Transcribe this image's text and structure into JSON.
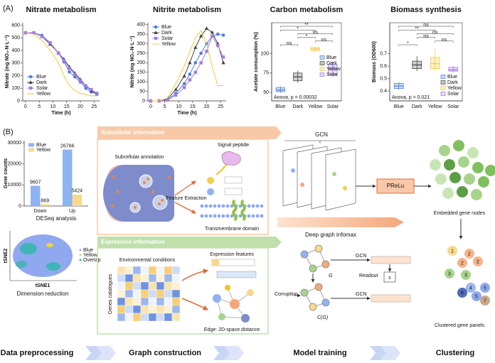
{
  "figure": {
    "panel_a": "(A)",
    "panel_b": "(B)"
  },
  "chart_data": [
    {
      "type": "line",
      "title": "Nitrate metabolism",
      "x_label": "Time (h)",
      "y_label": "Nitrate (mg NO₃-N·L⁻¹)",
      "x": [
        0,
        3,
        6,
        9,
        12,
        14,
        16,
        18,
        20,
        22,
        24,
        26
      ],
      "xlim": [
        -1,
        27
      ],
      "xticks": [
        0,
        5,
        10,
        15,
        20,
        25
      ],
      "ylim": [
        0,
        620
      ],
      "yticks": [
        0,
        100,
        200,
        300,
        400,
        500,
        600
      ],
      "legend": "lower left",
      "series": [
        {
          "name": "Blue",
          "color": "#4a7fe0",
          "marker": "circle",
          "values": [
            540,
            540,
            520,
            460,
            380,
            310,
            230,
            190,
            150,
            100,
            70,
            55
          ]
        },
        {
          "name": "Dark",
          "color": "#444444",
          "marker": "triangle",
          "values": [
            540,
            540,
            510,
            450,
            380,
            330,
            270,
            220,
            170,
            120,
            80,
            55
          ]
        },
        {
          "name": "Solar",
          "color": "#a678e6",
          "marker": "square",
          "values": [
            540,
            540,
            510,
            460,
            380,
            320,
            260,
            210,
            160,
            120,
            90,
            60
          ]
        },
        {
          "name": "Yellow",
          "color": "#f5c542",
          "marker": "none",
          "values": [
            540,
            530,
            480,
            400,
            300,
            200,
            120,
            80,
            60,
            50,
            40,
            40
          ]
        }
      ]
    },
    {
      "type": "line",
      "title": "Nitrite metabolism",
      "x_label": "Time (h)",
      "y_label": "Nitrite (mg NO₂-N·L⁻¹)",
      "x": [
        0,
        3,
        6,
        9,
        12,
        14,
        16,
        18,
        20,
        22,
        24,
        26
      ],
      "xlim": [
        -1,
        27
      ],
      "xticks": [
        0,
        5,
        10,
        15,
        20,
        25
      ],
      "ylim": [
        0,
        410
      ],
      "yticks": [
        0,
        50,
        100,
        150,
        200,
        250,
        300,
        350,
        400
      ],
      "legend": "upper left",
      "series": [
        {
          "name": "Blue",
          "color": "#4a7fe0",
          "marker": "circle",
          "values": [
            0,
            0,
            5,
            40,
            90,
            140,
            200,
            250,
            300,
            340,
            350,
            345
          ]
        },
        {
          "name": "Dark",
          "color": "#444444",
          "marker": "triangle",
          "values": [
            0,
            0,
            10,
            60,
            130,
            200,
            280,
            340,
            380,
            360,
            300,
            200
          ]
        },
        {
          "name": "Solar",
          "color": "#a678e6",
          "marker": "square",
          "values": [
            0,
            0,
            5,
            30,
            70,
            110,
            150,
            200,
            260,
            340,
            290,
            230
          ]
        },
        {
          "name": "Yellow",
          "color": "#f5c542",
          "marker": "none",
          "values": [
            0,
            0,
            15,
            90,
            180,
            260,
            330,
            370,
            300,
            180,
            80,
            80
          ]
        }
      ]
    },
    {
      "type": "box",
      "title": "Carbon metabolism",
      "y_label": "Acetate consumption (%)",
      "categories": [
        "Blue",
        "Dark",
        "Yellow",
        "Solar"
      ],
      "colors": [
        "#4a7fe0",
        "#444444",
        "#f5c542",
        "#a678e6"
      ],
      "boxes": [
        {
          "min": 49,
          "q1": 51,
          "median": 53,
          "q3": 56,
          "max": 58
        },
        {
          "min": 62,
          "q1": 65,
          "median": 70,
          "q3": 75,
          "max": 78
        },
        {
          "min": 103,
          "q1": 104,
          "median": 106,
          "q3": 108,
          "max": 109
        },
        {
          "min": 70,
          "q1": 73,
          "median": 80,
          "q3": 86,
          "max": 90
        }
      ],
      "ylim": [
        39,
        140
      ],
      "yticks": [
        50,
        75,
        100
      ],
      "annotation": "Anova, p = 0.00032",
      "legend": "center right",
      "comparisons": [
        {
          "groups": [
            "Blue",
            "Dark"
          ],
          "label": "ns"
        },
        {
          "groups": [
            "Yellow",
            "Solar"
          ],
          "label": "ns"
        },
        {
          "groups": [
            "Dark",
            "Yellow"
          ],
          "label": "*"
        },
        {
          "groups": [
            "Dark",
            "Solar"
          ],
          "label": "ns"
        },
        {
          "groups": [
            "Blue",
            "Yellow"
          ],
          "label": "*"
        },
        {
          "groups": [
            "Blue",
            "Solar"
          ],
          "label": "**"
        }
      ]
    },
    {
      "type": "box",
      "title": "Biomass synthesis",
      "y_label": "Biomass (OD600)",
      "categories": [
        "Blue",
        "Dark",
        "Yellow",
        "Solar"
      ],
      "colors": [
        "#4a7fe0",
        "#444444",
        "#f5c542",
        "#a678e6"
      ],
      "boxes": [
        {
          "min": 0.41,
          "q1": 0.42,
          "median": 0.44,
          "q3": 0.46,
          "max": 0.47
        },
        {
          "min": 0.56,
          "q1": 0.58,
          "median": 0.61,
          "q3": 0.64,
          "max": 0.68
        },
        {
          "min": 0.56,
          "q1": 0.58,
          "median": 0.62,
          "q3": 0.67,
          "max": 0.74
        },
        {
          "min": 0.55,
          "q1": 0.56,
          "median": 0.57,
          "q3": 0.59,
          "max": 0.6
        }
      ],
      "ylim": [
        0.32,
        0.95
      ],
      "yticks": [
        0.4,
        0.5,
        0.6,
        0.7
      ],
      "annotation": "Anova, p = 0.021",
      "legend": "lower right",
      "comparisons": [
        {
          "groups": [
            "Blue",
            "Dark"
          ],
          "label": "*"
        },
        {
          "groups": [
            "Yellow",
            "Solar"
          ],
          "label": "ns"
        },
        {
          "groups": [
            "Dark",
            "Yellow"
          ],
          "label": "ns"
        },
        {
          "groups": [
            "Dark",
            "Solar"
          ],
          "label": "ns"
        },
        {
          "groups": [
            "Blue",
            "Yellow"
          ],
          "label": "**"
        },
        {
          "groups": [
            "Blue",
            "Solar"
          ],
          "label": "ns"
        }
      ]
    },
    {
      "type": "bar",
      "title": "DESeq analysis",
      "y_label": "Gene counts",
      "categories": [
        "Down",
        "Up"
      ],
      "ylim": [
        0,
        31000
      ],
      "yticks": [
        0,
        10000,
        20000,
        30000
      ],
      "legend": "upper left",
      "series": [
        {
          "name": "Blue",
          "color": "#8fb3f0",
          "values": [
            9607,
            26766
          ]
        },
        {
          "name": "Yellow",
          "color": "#f7d98a",
          "values": [
            869,
            5424
          ]
        }
      ]
    }
  ],
  "preprocessing": {
    "tsne": {
      "title": "Dimension reduction",
      "x_label": "tSNE1",
      "y_label": "tSNE2",
      "legend": [
        "Blue",
        "Yellow",
        "Overlap"
      ]
    }
  },
  "graph_construction": {
    "subcellular": {
      "header": "Subcellular information",
      "annotation": "Subcellular annotation",
      "extraction": "Feature Extraction",
      "signal": "Signal peptide",
      "transmembrane": "Transmembrane domain"
    },
    "expression": {
      "header": "Expression information",
      "conditions": "Environmental conditions",
      "genes": "Genes catalogues",
      "features": "Expression features",
      "edge": "Edge: 2D-space distance"
    }
  },
  "model_training": {
    "gcn_top": "GCN",
    "activation": "PReLu",
    "method": "Deep graph infomax",
    "graph": "G",
    "corrupted": "C(G)",
    "corruption": "Corruption",
    "gcn_a": "GCN",
    "gcn_b": "GCN",
    "readout": "Readout",
    "summary": "s"
  },
  "clustering": {
    "embedded": "Embedded gene nodes",
    "clustered": "Clustered gene panels",
    "panel_numbers": [
      "1",
      "2",
      "2",
      "2",
      "3",
      "3",
      "4",
      "5",
      "5",
      "6",
      "7"
    ]
  },
  "stages": [
    "Data preprocessing",
    "Graph construction",
    "Model training",
    "Clustering"
  ]
}
